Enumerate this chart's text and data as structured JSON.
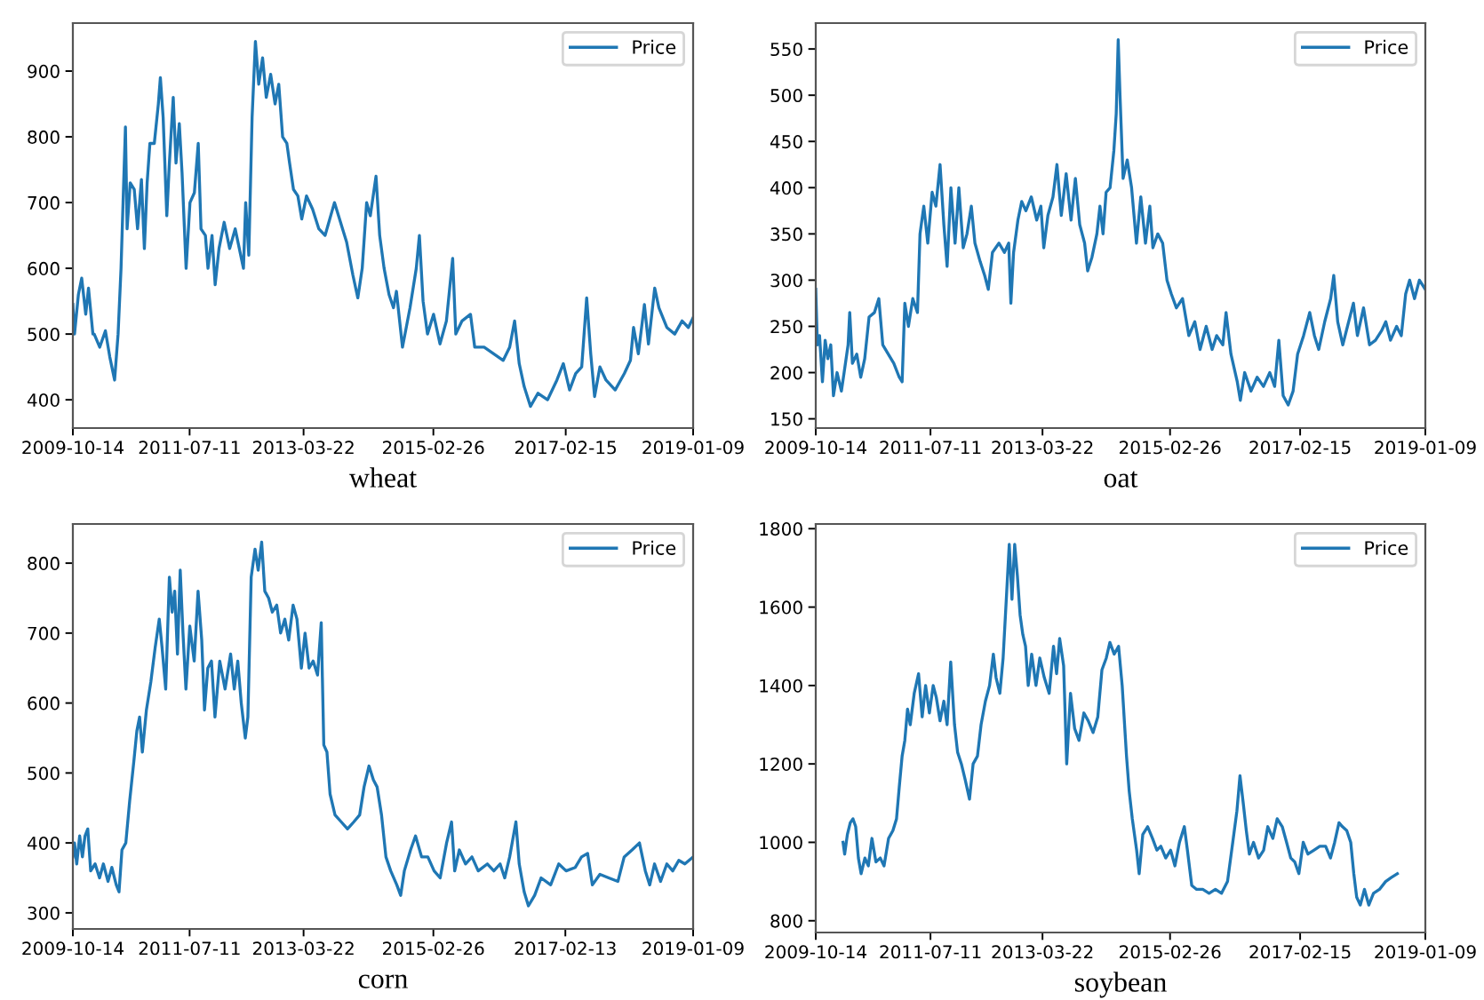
{
  "chart_data": [
    {
      "type": "line",
      "xlabel": "wheat",
      "legend": "top right",
      "xlim": [
        "2009-10-14",
        "2019-01-09"
      ],
      "xticks": [
        "2009-10-14",
        "2011-07-11",
        "2013-03-22",
        "2015-02-26",
        "2017-02-15",
        "2019-01-09"
      ],
      "ylim": [
        357,
        973
      ],
      "yticks": [
        400,
        500,
        600,
        700,
        800,
        900
      ],
      "x": [
        "2009-10-14",
        "2009-10-23",
        "2009-11-13",
        "2009-12-01",
        "2009-12-23",
        "2010-01-07",
        "2010-01-31",
        "2010-02-07",
        "2010-03-09",
        "2010-04-09",
        "2010-05-03",
        "2010-05-29",
        "2010-06-17",
        "2010-07-03",
        "2010-07-14",
        "2010-07-27",
        "2010-08-05",
        "2010-08-22",
        "2010-09-13",
        "2010-10-01",
        "2010-10-22",
        "2010-11-07",
        "2010-11-22",
        "2010-12-07",
        "2010-12-31",
        "2011-01-22",
        "2011-02-02",
        "2011-02-17",
        "2011-03-09",
        "2011-03-23",
        "2011-04-13",
        "2011-04-28",
        "2011-05-16",
        "2011-05-31",
        "2011-06-22",
        "2011-07-13",
        "2011-08-06",
        "2011-08-27",
        "2011-09-11",
        "2011-10-05",
        "2011-10-19",
        "2011-11-10",
        "2011-11-27",
        "2011-12-18",
        "2012-01-15",
        "2012-02-14",
        "2012-03-15",
        "2012-04-14",
        "2012-04-29",
        "2012-05-11",
        "2012-05-28",
        "2012-06-15",
        "2012-07-03",
        "2012-07-21",
        "2012-08-11",
        "2012-08-31",
        "2012-09-24",
        "2012-10-18",
        "2012-11-07",
        "2012-11-28",
        "2012-12-21",
        "2013-01-05",
        "2013-01-26",
        "2013-02-19",
        "2013-03-12",
        "2013-04-07",
        "2013-05-10",
        "2013-06-13",
        "2013-07-17",
        "2013-09-06",
        "2013-10-09",
        "2013-11-11",
        "2013-12-15",
        "2014-01-11",
        "2014-02-04",
        "2014-02-28",
        "2014-03-20",
        "2014-04-20",
        "2014-05-10",
        "2014-06-03",
        "2014-06-30",
        "2014-07-24",
        "2014-08-09",
        "2014-09-11",
        "2014-10-22",
        "2014-11-25",
        "2014-12-12",
        "2015-01-01",
        "2015-01-25",
        "2015-02-27",
        "2015-04-03",
        "2015-05-08",
        "2015-06-11",
        "2015-06-28",
        "2015-08-01",
        "2015-09-16",
        "2015-10-09",
        "2015-11-29",
        "2016-01-20",
        "2016-03-12",
        "2016-04-16",
        "2016-05-13",
        "2016-06-07",
        "2016-07-04",
        "2016-08-07",
        "2016-09-17",
        "2016-11-08",
        "2016-12-29",
        "2017-02-02",
        "2017-03-08",
        "2017-04-10",
        "2017-05-13",
        "2017-06-09",
        "2017-07-01",
        "2017-07-22",
        "2017-08-20",
        "2017-09-22",
        "2017-11-11",
        "2017-12-31",
        "2018-02-02",
        "2018-02-19",
        "2018-03-17",
        "2018-04-19",
        "2018-05-11",
        "2018-06-14",
        "2018-07-07",
        "2018-08-19",
        "2018-10-01",
        "2018-11-10",
        "2018-12-14",
        "2019-01-09"
      ],
      "series": [
        {
          "name": "Price",
          "color": "#1f77b4",
          "values": [
            545,
            500,
            560,
            585,
            530,
            570,
            500,
            500,
            480,
            505,
            465,
            430,
            500,
            600,
            700,
            815,
            660,
            730,
            720,
            660,
            735,
            630,
            730,
            790,
            790,
            850,
            890,
            830,
            680,
            760,
            860,
            760,
            820,
            745,
            600,
            700,
            715,
            790,
            660,
            650,
            600,
            650,
            575,
            630,
            670,
            630,
            660,
            620,
            600,
            700,
            620,
            830,
            945,
            880,
            920,
            860,
            895,
            850,
            880,
            800,
            790,
            760,
            720,
            710,
            675,
            710,
            690,
            660,
            650,
            700,
            670,
            640,
            590,
            555,
            600,
            700,
            680,
            740,
            650,
            600,
            560,
            540,
            565,
            480,
            540,
            600,
            650,
            550,
            500,
            530,
            485,
            520,
            615,
            500,
            520,
            530,
            480,
            480,
            470,
            460,
            480,
            520,
            455,
            420,
            390,
            410,
            400,
            430,
            455,
            415,
            440,
            450,
            555,
            470,
            405,
            450,
            430,
            415,
            440,
            460,
            510,
            470,
            545,
            485,
            570,
            540,
            510,
            500,
            520,
            510,
            525
          ]
        }
      ]
    },
    {
      "type": "line",
      "xlabel": "oat",
      "legend": "top right",
      "xlim": [
        "2009-10-14",
        "2019-01-09"
      ],
      "xticks": [
        "2009-10-14",
        "2011-07-11",
        "2013-03-22",
        "2015-02-26",
        "2017-02-15",
        "2019-01-09"
      ],
      "ylim": [
        140,
        578
      ],
      "yticks": [
        150,
        200,
        250,
        300,
        350,
        400,
        450,
        500,
        550
      ],
      "x": [
        "2009-10-14",
        "2009-10-23",
        "2009-11-04",
        "2009-11-20",
        "2009-12-05",
        "2009-12-20",
        "2010-01-05",
        "2010-01-20",
        "2010-02-09",
        "2010-03-05",
        "2010-03-20",
        "2010-04-11",
        "2010-04-20",
        "2010-05-05",
        "2010-05-29",
        "2010-06-20",
        "2010-07-12",
        "2010-08-05",
        "2010-09-04",
        "2010-09-28",
        "2010-10-20",
        "2010-11-19",
        "2010-12-20",
        "2011-01-19",
        "2011-02-04",
        "2011-02-19",
        "2011-03-11",
        "2011-04-04",
        "2011-04-30",
        "2011-05-14",
        "2011-06-04",
        "2011-06-26",
        "2011-07-20",
        "2011-08-10",
        "2011-09-02",
        "2011-09-23",
        "2011-10-11",
        "2011-11-01",
        "2011-11-24",
        "2011-12-15",
        "2012-01-08",
        "2012-01-29",
        "2012-02-22",
        "2012-03-13",
        "2012-04-11",
        "2012-05-06",
        "2012-05-26",
        "2012-06-18",
        "2012-07-24",
        "2012-08-23",
        "2012-09-16",
        "2012-09-28",
        "2012-10-13",
        "2012-11-06",
        "2012-11-27",
        "2012-12-20",
        "2013-01-19",
        "2013-02-18",
        "2013-03-13",
        "2013-03-29",
        "2013-04-21",
        "2013-05-19",
        "2013-06-10",
        "2013-07-04",
        "2013-07-31",
        "2013-08-27",
        "2013-09-20",
        "2013-10-14",
        "2013-11-10",
        "2013-11-27",
        "2013-12-21",
        "2014-01-17",
        "2014-02-03",
        "2014-02-20",
        "2014-03-09",
        "2014-03-31",
        "2014-04-21",
        "2014-05-04",
        "2014-05-15",
        "2014-05-25",
        "2014-06-11",
        "2014-07-04",
        "2014-07-28",
        "2014-08-24",
        "2014-09-17",
        "2014-10-13",
        "2014-11-06",
        "2014-11-23",
        "2014-12-20",
        "2015-01-16",
        "2015-02-09",
        "2015-03-05",
        "2015-04-02",
        "2015-05-06",
        "2015-06-10",
        "2015-07-13",
        "2015-08-11",
        "2015-09-14",
        "2015-10-17",
        "2015-11-11",
        "2015-12-15",
        "2016-01-02",
        "2016-01-29",
        "2016-03-04",
        "2016-03-21",
        "2016-04-14",
        "2016-05-19",
        "2016-06-22",
        "2016-07-27",
        "2016-08-31",
        "2016-09-27",
        "2016-10-20",
        "2016-11-13",
        "2016-12-11",
        "2017-01-07",
        "2017-02-01",
        "2017-03-06",
        "2017-04-09",
        "2017-05-05",
        "2017-05-29",
        "2017-07-01",
        "2017-08-03",
        "2017-08-20",
        "2017-09-11",
        "2017-10-09",
        "2017-11-04",
        "2017-12-07",
        "2017-12-29",
        "2018-02-01",
        "2018-03-06",
        "2018-04-08",
        "2018-05-11",
        "2018-06-04",
        "2018-06-30",
        "2018-08-03",
        "2018-08-29",
        "2018-09-22",
        "2018-10-14",
        "2018-11-10",
        "2018-12-07",
        "2019-01-09"
      ],
      "series": [
        {
          "name": "Price",
          "color": "#1f77b4",
          "values": [
            290,
            230,
            240,
            190,
            235,
            215,
            230,
            175,
            200,
            180,
            200,
            230,
            265,
            210,
            220,
            195,
            215,
            260,
            265,
            280,
            230,
            220,
            210,
            195,
            190,
            275,
            250,
            280,
            265,
            350,
            380,
            340,
            395,
            380,
            425,
            360,
            315,
            400,
            340,
            400,
            335,
            350,
            380,
            340,
            320,
            305,
            290,
            330,
            340,
            330,
            340,
            275,
            330,
            365,
            385,
            375,
            390,
            365,
            380,
            335,
            370,
            390,
            425,
            370,
            415,
            365,
            410,
            360,
            340,
            310,
            325,
            350,
            380,
            350,
            395,
            400,
            440,
            480,
            560,
            500,
            410,
            430,
            400,
            340,
            390,
            340,
            380,
            335,
            350,
            340,
            300,
            285,
            270,
            280,
            240,
            255,
            225,
            250,
            225,
            240,
            230,
            265,
            220,
            190,
            170,
            200,
            180,
            195,
            185,
            200,
            185,
            235,
            175,
            165,
            180,
            220,
            240,
            265,
            240,
            225,
            255,
            280,
            305,
            255,
            230,
            250,
            275,
            240,
            270,
            230,
            235,
            245,
            255,
            235,
            250,
            240,
            285,
            300,
            280,
            300,
            290
          ]
        }
      ]
    },
    {
      "type": "line",
      "xlabel": "corn",
      "legend": "top right",
      "xlim": [
        "2009-10-14",
        "2019-01-09"
      ],
      "xticks": [
        "2009-10-14",
        "2011-07-11",
        "2013-03-22",
        "2015-02-26",
        "2017-02-13",
        "2019-01-09"
      ],
      "ylim": [
        277,
        856
      ],
      "yticks": [
        300,
        400,
        500,
        600,
        700,
        800
      ],
      "x": [
        "2009-10-14",
        "2009-10-23",
        "2009-11-04",
        "2009-11-20",
        "2009-12-05",
        "2009-12-19",
        "2010-01-03",
        "2010-01-19",
        "2010-02-12",
        "2010-03-08",
        "2010-03-29",
        "2010-04-23",
        "2010-05-14",
        "2010-06-07",
        "2010-06-22",
        "2010-07-08",
        "2010-07-29",
        "2010-08-19",
        "2010-09-12",
        "2010-09-27",
        "2010-10-12",
        "2010-10-27",
        "2010-11-18",
        "2010-12-12",
        "2011-01-05",
        "2011-01-27",
        "2011-02-11",
        "2011-03-03",
        "2011-03-23",
        "2011-04-07",
        "2011-04-21",
        "2011-05-06",
        "2011-05-21",
        "2011-06-05",
        "2011-06-21",
        "2011-07-12",
        "2011-08-05",
        "2011-08-26",
        "2011-09-15",
        "2011-09-30",
        "2011-10-18",
        "2011-11-07",
        "2011-11-26",
        "2011-12-22",
        "2012-01-20",
        "2012-02-19",
        "2012-03-10",
        "2012-03-29",
        "2012-04-17",
        "2012-05-09",
        "2012-05-23",
        "2012-06-10",
        "2012-07-01",
        "2012-07-18",
        "2012-08-06",
        "2012-08-23",
        "2012-09-13",
        "2012-10-03",
        "2012-10-27",
        "2012-11-17",
        "2012-12-10",
        "2012-12-31",
        "2013-01-24",
        "2013-02-14",
        "2013-03-10",
        "2013-03-30",
        "2013-04-21",
        "2013-05-13",
        "2013-06-06",
        "2013-06-26",
        "2013-07-10",
        "2013-07-27",
        "2013-08-13",
        "2013-09-09",
        "2013-10-13",
        "2013-11-16",
        "2013-12-20",
        "2014-01-21",
        "2014-02-14",
        "2014-03-13",
        "2014-04-06",
        "2014-04-26",
        "2014-05-20",
        "2014-06-13",
        "2014-07-09",
        "2014-08-11",
        "2014-09-01",
        "2014-09-21",
        "2014-10-25",
        "2014-11-21",
        "2014-12-24",
        "2015-01-27",
        "2015-03-02",
        "2015-04-04",
        "2015-05-09",
        "2015-06-05",
        "2015-06-22",
        "2015-07-17",
        "2015-08-20",
        "2015-09-24",
        "2015-10-28",
        "2015-12-17",
        "2016-01-21",
        "2016-02-24",
        "2016-03-20",
        "2016-04-16",
        "2016-05-20",
        "2016-06-07",
        "2016-07-04",
        "2016-07-27",
        "2016-08-30",
        "2016-10-04",
        "2016-11-25",
        "2017-01-08",
        "2017-02-17",
        "2017-04-08",
        "2017-05-12",
        "2017-06-14",
        "2017-07-10",
        "2017-08-20",
        "2017-10-07",
        "2017-11-26",
        "2017-12-30",
        "2018-02-11",
        "2018-03-23",
        "2018-04-24",
        "2018-05-18",
        "2018-06-13",
        "2018-07-16",
        "2018-08-19",
        "2018-09-20",
        "2018-10-23",
        "2018-11-25",
        "2019-01-09"
      ],
      "series": [
        {
          "name": "Price",
          "color": "#1f77b4",
          "values": [
            380,
            400,
            370,
            410,
            380,
            410,
            420,
            360,
            370,
            350,
            370,
            345,
            365,
            340,
            330,
            390,
            400,
            460,
            520,
            560,
            580,
            530,
            590,
            630,
            680,
            720,
            680,
            620,
            780,
            730,
            760,
            670,
            790,
            700,
            620,
            710,
            660,
            760,
            690,
            590,
            650,
            660,
            580,
            660,
            620,
            670,
            620,
            660,
            600,
            550,
            580,
            780,
            820,
            790,
            830,
            760,
            750,
            730,
            740,
            700,
            720,
            690,
            740,
            720,
            650,
            700,
            650,
            660,
            640,
            715,
            540,
            530,
            470,
            440,
            430,
            420,
            430,
            440,
            480,
            510,
            490,
            480,
            440,
            380,
            360,
            340,
            325,
            360,
            390,
            410,
            380,
            380,
            360,
            350,
            400,
            430,
            360,
            390,
            370,
            380,
            360,
            370,
            360,
            370,
            350,
            380,
            430,
            370,
            330,
            310,
            325,
            350,
            340,
            370,
            360,
            365,
            380,
            385,
            340,
            355,
            350,
            345,
            380,
            390,
            400,
            360,
            340,
            370,
            345,
            370,
            360,
            375,
            370,
            380
          ]
        }
      ]
    },
    {
      "type": "line",
      "xlabel": "soybean",
      "legend": "top right",
      "xlim": [
        "2009-10-14",
        "2019-01-09"
      ],
      "xticks": [
        "2009-10-14",
        "2011-07-11",
        "2013-03-22",
        "2015-02-26",
        "2017-02-15",
        "2019-01-09"
      ],
      "ylim": [
        770,
        1812
      ],
      "yticks": [
        800,
        1000,
        1200,
        1400,
        1600,
        1800
      ],
      "x": [
        "2010-03-14",
        "2010-03-23",
        "2010-04-07",
        "2010-04-23",
        "2010-05-08",
        "2010-05-23",
        "2010-06-07",
        "2010-06-22",
        "2010-07-13",
        "2010-08-01",
        "2010-08-21",
        "2010-09-12",
        "2010-10-06",
        "2010-10-27",
        "2010-11-21",
        "2010-12-15",
        "2011-01-04",
        "2011-01-19",
        "2011-02-04",
        "2011-02-19",
        "2011-03-06",
        "2011-03-21",
        "2011-04-12",
        "2011-05-06",
        "2011-05-26",
        "2011-06-14",
        "2011-07-05",
        "2011-07-26",
        "2011-08-12",
        "2011-09-02",
        "2011-09-23",
        "2011-10-11",
        "2011-10-31",
        "2011-11-21",
        "2011-12-08",
        "2011-12-29",
        "2012-01-19",
        "2012-02-12",
        "2012-03-03",
        "2012-03-27",
        "2012-04-16",
        "2012-05-10",
        "2012-06-02",
        "2012-06-23",
        "2012-07-08",
        "2012-07-29",
        "2012-08-16",
        "2012-09-05",
        "2012-09-19",
        "2012-10-04",
        "2012-10-19",
        "2012-11-03",
        "2012-11-18",
        "2012-12-03",
        "2012-12-18",
        "2013-01-02",
        "2013-01-21",
        "2013-02-14",
        "2013-03-07",
        "2013-04-01",
        "2013-04-28",
        "2013-05-22",
        "2013-06-08",
        "2013-06-25",
        "2013-07-17",
        "2013-08-03",
        "2013-08-24",
        "2013-09-16",
        "2013-10-10",
        "2013-11-06",
        "2013-11-30",
        "2013-12-27",
        "2014-01-22",
        "2014-02-14",
        "2014-03-10",
        "2014-03-30",
        "2014-04-23",
        "2014-05-17",
        "2014-06-06",
        "2014-06-30",
        "2014-07-15",
        "2014-08-01",
        "2014-08-25",
        "2014-09-08",
        "2014-09-28",
        "2014-10-25",
        "2014-11-21",
        "2014-12-15",
        "2015-01-06",
        "2015-02-02",
        "2015-03-01",
        "2015-03-25",
        "2015-04-19",
        "2015-05-16",
        "2015-06-02",
        "2015-06-26",
        "2015-07-23",
        "2015-08-26",
        "2015-09-30",
        "2015-11-04",
        "2015-12-08",
        "2016-01-10",
        "2016-02-08",
        "2016-03-02",
        "2016-03-19",
        "2016-04-06",
        "2016-04-23",
        "2016-05-10",
        "2016-06-02",
        "2016-06-30",
        "2016-07-28",
        "2016-08-20",
        "2016-09-17",
        "2016-10-11",
        "2016-11-08",
        "2016-12-02",
        "2016-12-25",
        "2017-01-16",
        "2017-02-08",
        "2017-03-04",
        "2017-03-30",
        "2017-05-02",
        "2017-06-04",
        "2017-07-06",
        "2017-08-02",
        "2017-08-25",
        "2017-09-18",
        "2017-10-07",
        "2017-10-31",
        "2017-11-22",
        "2017-12-09",
        "2017-12-25",
        "2018-01-14",
        "2018-02-06",
        "2018-03-02",
        "2018-03-28",
        "2018-04-30",
        "2018-06-03",
        "2018-07-04",
        "2018-08-07"
      ],
      "series": [
        {
          "name": "Price",
          "color": "#1f77b4",
          "values": [
            1000,
            970,
            1020,
            1050,
            1060,
            1040,
            960,
            920,
            960,
            940,
            1010,
            950,
            960,
            940,
            1010,
            1030,
            1060,
            1140,
            1220,
            1260,
            1340,
            1300,
            1380,
            1430,
            1320,
            1400,
            1330,
            1400,
            1370,
            1310,
            1360,
            1300,
            1460,
            1300,
            1230,
            1200,
            1160,
            1110,
            1200,
            1220,
            1300,
            1360,
            1400,
            1480,
            1420,
            1380,
            1470,
            1640,
            1760,
            1620,
            1760,
            1680,
            1580,
            1530,
            1500,
            1400,
            1480,
            1400,
            1470,
            1420,
            1380,
            1500,
            1430,
            1520,
            1450,
            1200,
            1380,
            1290,
            1260,
            1330,
            1310,
            1280,
            1320,
            1440,
            1470,
            1510,
            1480,
            1500,
            1400,
            1220,
            1130,
            1060,
            980,
            920,
            1020,
            1040,
            1010,
            980,
            990,
            960,
            980,
            940,
            1000,
            1040,
            980,
            890,
            880,
            880,
            870,
            880,
            870,
            900,
            1000,
            1080,
            1170,
            1100,
            1030,
            970,
            1000,
            960,
            980,
            1040,
            1010,
            1060,
            1040,
            1000,
            960,
            950,
            920,
            1000,
            970,
            980,
            990,
            990,
            960,
            1000,
            1050,
            1040,
            1030,
            1000,
            920,
            860,
            840,
            880,
            840,
            870,
            880,
            900,
            910,
            920
          ]
        }
      ]
    }
  ]
}
